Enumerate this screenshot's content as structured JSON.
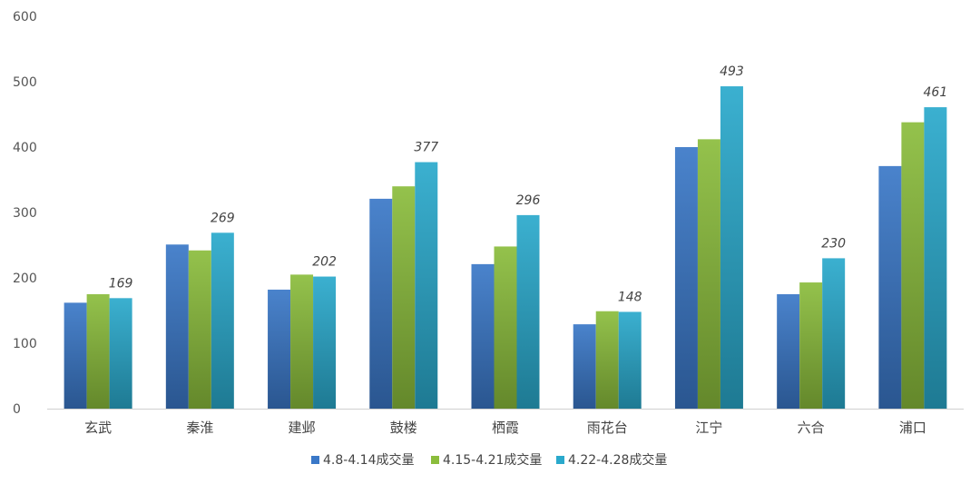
{
  "chart_data": {
    "type": "bar",
    "title": "",
    "xlabel": "",
    "ylabel": "",
    "ylim": [
      0,
      600
    ],
    "yticks": [
      0,
      100,
      200,
      300,
      400,
      500,
      600
    ],
    "grid": false,
    "legend_position": "bottom",
    "categories": [
      "玄武",
      "秦淮",
      "建邺",
      "鼓楼",
      "栖霞",
      "雨花台",
      "江宁",
      "六合",
      "浦口"
    ],
    "series": [
      {
        "name": "4.8-4.14成交量",
        "color": "#3a78c8",
        "values": [
          162,
          251,
          182,
          321,
          221,
          129,
          400,
          175,
          371
        ]
      },
      {
        "name": "4.15-4.21成交量",
        "color": "#8bbd3c",
        "values": [
          175,
          242,
          205,
          340,
          248,
          149,
          412,
          193,
          438
        ]
      },
      {
        "name": "4.22-4.28成交量",
        "color": "#2aa9cc",
        "values": [
          169,
          269,
          202,
          377,
          296,
          148,
          493,
          230,
          461
        ]
      }
    ],
    "data_labels_series": 2
  }
}
